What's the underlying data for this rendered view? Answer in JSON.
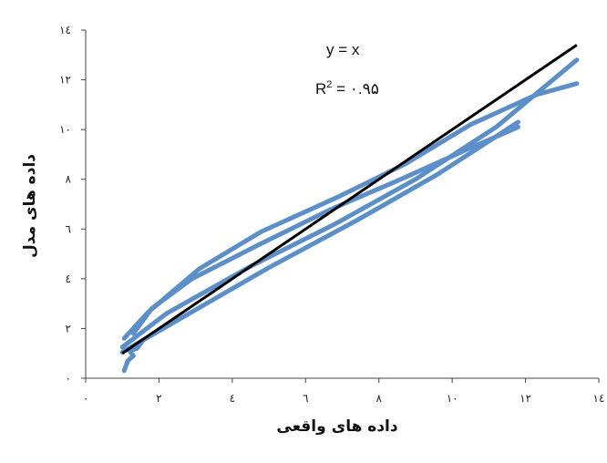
{
  "chart_data": {
    "type": "scatter",
    "xlabel": "داده های واقعی",
    "ylabel": "داده های مدل",
    "xlim": [
      0,
      14
    ],
    "ylim": [
      0,
      14
    ],
    "x_ticks": [
      0,
      2,
      4,
      6,
      8,
      10,
      12,
      14
    ],
    "y_ticks": [
      0,
      2,
      4,
      6,
      8,
      10,
      12,
      14
    ],
    "x_tick_labels": [
      "۰",
      "۲",
      "٤",
      "٦",
      "۸",
      "۱۰",
      "۱۲",
      "۱٤"
    ],
    "y_tick_labels": [
      "۰",
      "۲",
      "٤",
      "٦",
      "۸",
      "۱۰",
      "۱۲",
      "۱٤"
    ],
    "annotation_equation": "y = x",
    "annotation_r2_prefix": "R",
    "annotation_r2_sup": "2",
    "annotation_r2_value": " = ۰.۹۵",
    "colors": {
      "data": "#5b8fc9",
      "reference": "#000000"
    },
    "reference_line": {
      "x": [
        1,
        13.4
      ],
      "y": [
        1,
        13.4
      ]
    },
    "series": [
      {
        "x": [
          1,
          2.2,
          4.5,
          6.8,
          9,
          11.2,
          13.4
        ],
        "y": [
          1.25,
          2.6,
          4.5,
          6.2,
          8,
          10.1,
          12.8
        ]
      },
      {
        "x": [
          13.4,
          12.3,
          10.5,
          8.7,
          6.9,
          4.8,
          3.1,
          1.7,
          1.05
        ],
        "y": [
          11.85,
          11.4,
          10.2,
          8.6,
          7.3,
          5.9,
          4.4,
          2.65,
          1.6
        ]
      },
      {
        "x": [
          1,
          2.7,
          5,
          7.4,
          9.6,
          11.8
        ],
        "y": [
          1.05,
          2.5,
          4.45,
          6.35,
          8.2,
          10.3
        ]
      },
      {
        "x": [
          11.8,
          10.4,
          8.6,
          6.7,
          4.7,
          2.9,
          1.8,
          1.3
        ],
        "y": [
          10.1,
          9.2,
          8,
          6.8,
          5.35,
          4,
          2.8,
          1.8
        ]
      },
      {
        "x": [
          1.05,
          1.15,
          1.3,
          1.2,
          1.4,
          1.55
        ],
        "y": [
          0.3,
          0.7,
          0.9,
          1.1,
          1.2,
          1.5
        ]
      }
    ]
  }
}
